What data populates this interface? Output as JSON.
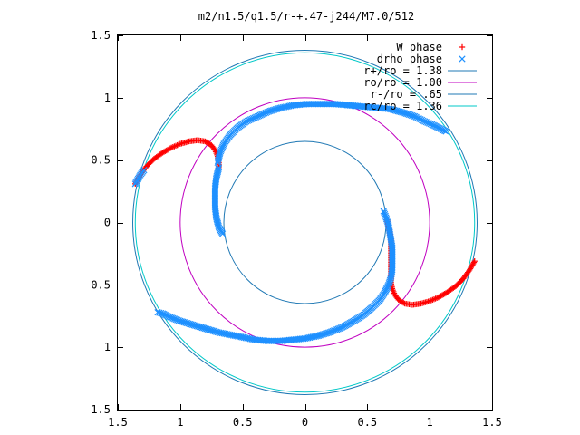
{
  "chart_data": {
    "type": "scatter",
    "title": "m2/n1.5/q1.5/r-+.47-j244/M7.0/512",
    "xlabel": "",
    "ylabel": "",
    "xlim": [
      -1.5,
      1.5
    ],
    "ylim": [
      -1.5,
      1.5
    ],
    "x_ticks": [
      -1.5,
      -1,
      -0.5,
      0,
      0.5,
      1,
      1.5
    ],
    "y_ticks": [
      -1.5,
      -1,
      -0.5,
      0,
      0.5,
      1,
      1.5
    ],
    "x_tick_labels": [
      "1.5",
      "1",
      "0.5",
      "0",
      "0.5",
      "1",
      "1.5"
    ],
    "y_tick_labels": [
      "1.5",
      "1",
      "0.5",
      "0",
      "0.5",
      "1",
      "1.5"
    ],
    "grid": false,
    "legend_position": "top-right",
    "aspect": "equal",
    "series": [
      {
        "name": "W phase",
        "kind": "points",
        "marker": "plus",
        "color": "#ff0000",
        "points": [
          [
            -1.36,
            0.31
          ],
          [
            -1.32,
            0.38
          ],
          [
            -1.27,
            0.45
          ],
          [
            -1.21,
            0.51
          ],
          [
            -1.14,
            0.56
          ],
          [
            -1.07,
            0.6
          ],
          [
            -1.0,
            0.63
          ],
          [
            -0.93,
            0.65
          ],
          [
            -0.86,
            0.66
          ],
          [
            -0.8,
            0.65
          ],
          [
            -0.75,
            0.62
          ],
          [
            -0.72,
            0.58
          ],
          [
            -0.7,
            0.53
          ],
          [
            -0.69,
            0.48
          ],
          [
            -0.69,
            0.44
          ],
          [
            1.36,
            -0.31
          ],
          [
            1.32,
            -0.38
          ],
          [
            1.27,
            -0.45
          ],
          [
            1.21,
            -0.51
          ],
          [
            1.14,
            -0.56
          ],
          [
            1.07,
            -0.6
          ],
          [
            1.0,
            -0.63
          ],
          [
            0.93,
            -0.65
          ],
          [
            0.86,
            -0.66
          ],
          [
            0.8,
            -0.65
          ],
          [
            0.75,
            -0.62
          ],
          [
            0.72,
            -0.58
          ],
          [
            0.7,
            -0.53
          ],
          [
            0.69,
            -0.48
          ],
          [
            0.69,
            -0.44
          ],
          [
            0.69,
            -0.38
          ],
          [
            0.69,
            -0.32
          ],
          [
            0.69,
            -0.26
          ],
          [
            0.69,
            -0.2
          ],
          [
            0.69,
            -0.14
          ],
          [
            0.68,
            -0.08
          ],
          [
            0.67,
            -0.03
          ],
          [
            0.66,
            0.02
          ]
        ]
      },
      {
        "name": "drho phase",
        "kind": "points",
        "marker": "x",
        "color": "#1e90ff",
        "points": [
          [
            -1.36,
            0.31
          ],
          [
            -1.32,
            0.38
          ],
          [
            -1.29,
            0.42
          ],
          [
            -0.69,
            0.44
          ],
          [
            -0.71,
            0.36
          ],
          [
            -0.72,
            0.28
          ],
          [
            -0.72,
            0.2
          ],
          [
            -0.72,
            0.12
          ],
          [
            -0.71,
            0.04
          ],
          [
            -0.69,
            -0.04
          ],
          [
            -0.66,
            -0.09
          ],
          [
            -0.7,
            0.48
          ],
          [
            -0.68,
            0.56
          ],
          [
            -0.65,
            0.63
          ],
          [
            -0.6,
            0.7
          ],
          [
            -0.54,
            0.76
          ],
          [
            -0.47,
            0.81
          ],
          [
            -0.38,
            0.85
          ],
          [
            -0.29,
            0.89
          ],
          [
            -0.19,
            0.92
          ],
          [
            -0.09,
            0.94
          ],
          [
            0.02,
            0.95
          ],
          [
            0.13,
            0.95
          ],
          [
            0.24,
            0.95
          ],
          [
            0.35,
            0.94
          ],
          [
            0.46,
            0.93
          ],
          [
            0.57,
            0.92
          ],
          [
            0.68,
            0.91
          ],
          [
            0.79,
            0.88
          ],
          [
            0.88,
            0.85
          ],
          [
            0.96,
            0.81
          ],
          [
            1.03,
            0.78
          ],
          [
            1.09,
            0.75
          ],
          [
            1.13,
            0.73
          ],
          [
            0.63,
            0.09
          ],
          [
            0.65,
            0.04
          ],
          [
            0.67,
            -0.02
          ],
          [
            0.68,
            -0.08
          ],
          [
            0.69,
            -0.14
          ],
          [
            0.7,
            -0.2
          ],
          [
            0.7,
            -0.26
          ],
          [
            0.7,
            -0.32
          ],
          [
            0.7,
            -0.38
          ],
          [
            0.69,
            -0.44
          ],
          [
            0.67,
            -0.5
          ],
          [
            0.64,
            -0.56
          ],
          [
            0.6,
            -0.62
          ],
          [
            0.54,
            -0.68
          ],
          [
            0.47,
            -0.74
          ],
          [
            0.39,
            -0.79
          ],
          [
            0.3,
            -0.84
          ],
          [
            0.2,
            -0.88
          ],
          [
            0.1,
            -0.91
          ],
          [
            0.0,
            -0.93
          ],
          [
            -0.1,
            -0.94
          ],
          [
            -0.2,
            -0.95
          ],
          [
            -0.3,
            -0.95
          ],
          [
            -0.4,
            -0.94
          ],
          [
            -0.5,
            -0.92
          ],
          [
            -0.6,
            -0.9
          ],
          [
            -0.7,
            -0.88
          ],
          [
            -0.8,
            -0.85
          ],
          [
            -0.9,
            -0.82
          ],
          [
            -1.0,
            -0.79
          ],
          [
            -1.08,
            -0.76
          ],
          [
            -1.14,
            -0.73
          ],
          [
            -1.18,
            -0.72
          ]
        ]
      },
      {
        "name": "r+/ro = 1.38",
        "kind": "circle",
        "radius": 1.38,
        "color": "#1f78b4"
      },
      {
        "name": "ro/ro = 1.00",
        "kind": "circle",
        "radius": 1.0,
        "color": "#c000c0"
      },
      {
        "name": "r-/ro = .65",
        "kind": "circle",
        "radius": 0.65,
        "color": "#1f78b4"
      },
      {
        "name": "rc/ro = 1.36",
        "kind": "circle",
        "radius": 1.36,
        "color": "#00c8c8"
      }
    ]
  }
}
